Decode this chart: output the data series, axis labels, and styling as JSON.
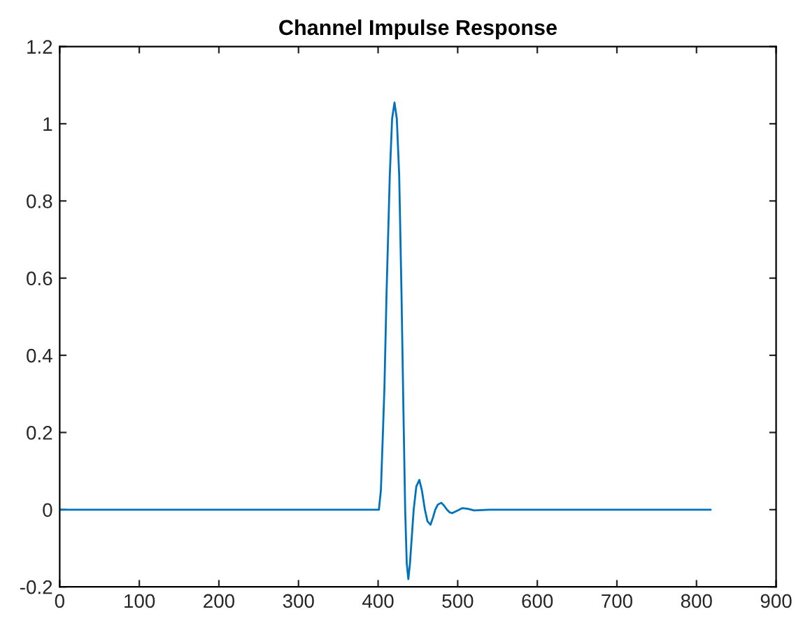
{
  "chart_data": {
    "type": "line",
    "title": "Channel Impulse Response",
    "series": [
      {
        "color": "#0072bd",
        "x": [
          1,
          401,
          403.5,
          406,
          408,
          410.6,
          414.7,
          417.6,
          420.6,
          423.5,
          426.5,
          429.4,
          431.8,
          434,
          436,
          438,
          440,
          444.7,
          448,
          451.8,
          455,
          458.8,
          462,
          465.9,
          469,
          471.8,
          475,
          479.4,
          483,
          486.5,
          490,
          493,
          499,
          506,
          513,
          520.6,
          540,
          817.6
        ],
        "values": [
          0,
          0,
          0.05,
          0.196,
          0.32,
          0.56,
          0.867,
          1.013,
          1.055,
          1.013,
          0.867,
          0.56,
          0.26,
          0,
          -0.14,
          -0.18,
          -0.14,
          0,
          0.06,
          0.077,
          0.05,
          0,
          -0.03,
          -0.039,
          -0.02,
          0,
          0.013,
          0.018,
          0.01,
          0,
          -0.007,
          -0.009,
          -0.003,
          0.004,
          0.002,
          -0.002,
          0,
          0
        ]
      }
    ],
    "xlim": [
      0,
      900
    ],
    "xticks": [
      0,
      100,
      200,
      300,
      400,
      500,
      600,
      700,
      800,
      900
    ],
    "ylim": [
      -0.2,
      1.2
    ],
    "yticks": [
      -0.2,
      0,
      0.2,
      0.4,
      0.6,
      0.8,
      1,
      1.2
    ],
    "grid": false,
    "line_style": "solid",
    "marker": "none"
  }
}
